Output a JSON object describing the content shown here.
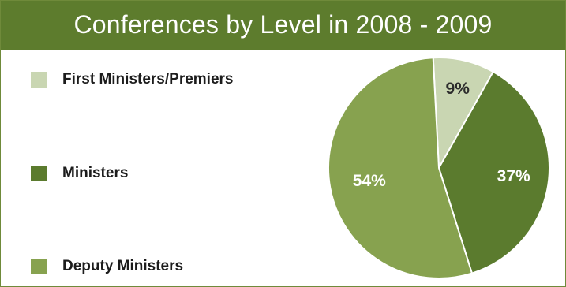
{
  "chart_data": {
    "type": "pie",
    "title": "Conferences by Level in 2008 - 2009",
    "categories": [
      "First Ministers/Premiers",
      "Ministers",
      "Deputy Ministers"
    ],
    "values": [
      9,
      37,
      54
    ],
    "labels": [
      "9%",
      "37%",
      "54%"
    ],
    "colors": [
      "#c9d6b2",
      "#5b7b2e",
      "#87a24f"
    ],
    "label_colors": [
      "#2c2c2c",
      "#ffffff",
      "#ffffff"
    ],
    "legend_placement": "left"
  },
  "colors": {
    "title_background": "#5d7c2d",
    "title_text": "#ffffff",
    "border": "#6f8a3a"
  }
}
